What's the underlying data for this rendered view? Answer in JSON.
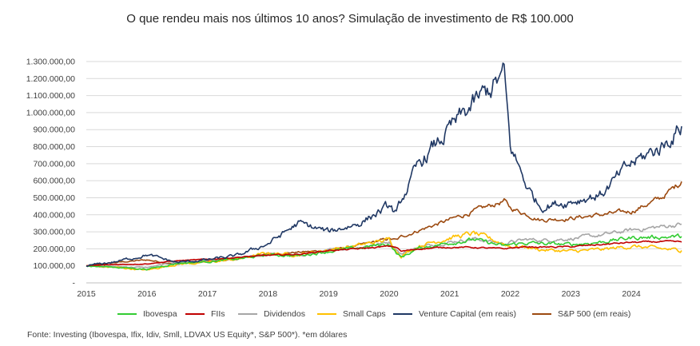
{
  "chart_data": {
    "type": "line",
    "title": "O que rendeu mais nos últimos 10 anos? Simulação de investimento de R$ 100.000",
    "xlabel": "",
    "ylabel": "",
    "x_ticks": [
      "2015",
      "2016",
      "2017",
      "2018",
      "2019",
      "2020",
      "2021",
      "2022",
      "2023",
      "2024"
    ],
    "y_ticks": [
      "-",
      "100.000,00",
      "200.000,00",
      "300.000,00",
      "400.000,00",
      "500.000,00",
      "600.000,00",
      "700.000,00",
      "800.000,00",
      "900.000,00",
      "1.000.000,00",
      "1.100.000,00",
      "1.200.000,00",
      "1.300.000,00"
    ],
    "xlim": [
      2015.0,
      2024.83
    ],
    "ylim": [
      0,
      1300000
    ],
    "grid": "horizontal",
    "legend_position": "bottom",
    "x": [
      2015.0,
      2015.5,
      2016.0,
      2016.5,
      2017.0,
      2017.5,
      2018.0,
      2018.5,
      2019.0,
      2019.5,
      2020.0,
      2020.12,
      2020.2,
      2020.5,
      2021.0,
      2021.4,
      2021.9,
      2022.0,
      2022.3,
      2022.5,
      2023.0,
      2023.5,
      2024.0,
      2024.5,
      2024.83
    ],
    "series": [
      {
        "name": "Ibovespa",
        "color": "#33cc33",
        "values": [
          100000,
          92000,
          80000,
          115000,
          125000,
          140000,
          165000,
          160000,
          185000,
          205000,
          230000,
          175000,
          150000,
          205000,
          235000,
          255000,
          215000,
          225000,
          235000,
          230000,
          225000,
          240000,
          265000,
          270000,
          272000
        ]
      },
      {
        "name": "FIIs",
        "color": "#c00000",
        "values": [
          100000,
          108000,
          112000,
          130000,
          138000,
          150000,
          162000,
          168000,
          190000,
          200000,
          215000,
          210000,
          185000,
          200000,
          210000,
          208000,
          200000,
          205000,
          212000,
          210000,
          212000,
          225000,
          238000,
          242000,
          240000
        ]
      },
      {
        "name": "Dividendos",
        "color": "#a6a6a6",
        "values": [
          100000,
          95000,
          90000,
          120000,
          130000,
          145000,
          165000,
          160000,
          190000,
          210000,
          240000,
          200000,
          170000,
          210000,
          240000,
          260000,
          230000,
          240000,
          255000,
          250000,
          260000,
          280000,
          310000,
          330000,
          345000
        ]
      },
      {
        "name": "Small Caps",
        "color": "#ffc000",
        "values": [
          100000,
          90000,
          75000,
          110000,
          120000,
          140000,
          175000,
          165000,
          195000,
          220000,
          255000,
          190000,
          160000,
          220000,
          265000,
          290000,
          230000,
          215000,
          210000,
          195000,
          185000,
          195000,
          215000,
          200000,
          190000
        ]
      },
      {
        "name": "Venture Capital (em reais)",
        "color": "#203864",
        "values": [
          100000,
          125000,
          165000,
          120000,
          135000,
          160000,
          230000,
          350000,
          300000,
          350000,
          450000,
          400000,
          480000,
          700000,
          900000,
          1050000,
          1220000,
          800000,
          550000,
          450000,
          480000,
          520000,
          700000,
          800000,
          920000
        ]
      },
      {
        "name": "S&P 500 (em reais)",
        "color": "#9c4a10",
        "values": [
          100000,
          120000,
          135000,
          110000,
          125000,
          140000,
          170000,
          180000,
          190000,
          220000,
          260000,
          250000,
          270000,
          310000,
          370000,
          420000,
          480000,
          440000,
          400000,
          370000,
          380000,
          400000,
          420000,
          500000,
          595000
        ]
      }
    ]
  },
  "legend": {
    "items": [
      {
        "label": "Ibovespa",
        "color": "#33cc33"
      },
      {
        "label": "FIIs",
        "color": "#c00000"
      },
      {
        "label": "Dividendos",
        "color": "#a6a6a6"
      },
      {
        "label": "Small Caps",
        "color": "#ffc000"
      },
      {
        "label": "Venture Capital (em reais)",
        "color": "#203864"
      },
      {
        "label": "S&P 500 (em reais)",
        "color": "#9c4a10"
      }
    ]
  },
  "source": "Fonte: Investing (Ibovespa, Ifix, Idiv, Smll, LDVAX US Equity*, S&P 500*). *em dólares"
}
